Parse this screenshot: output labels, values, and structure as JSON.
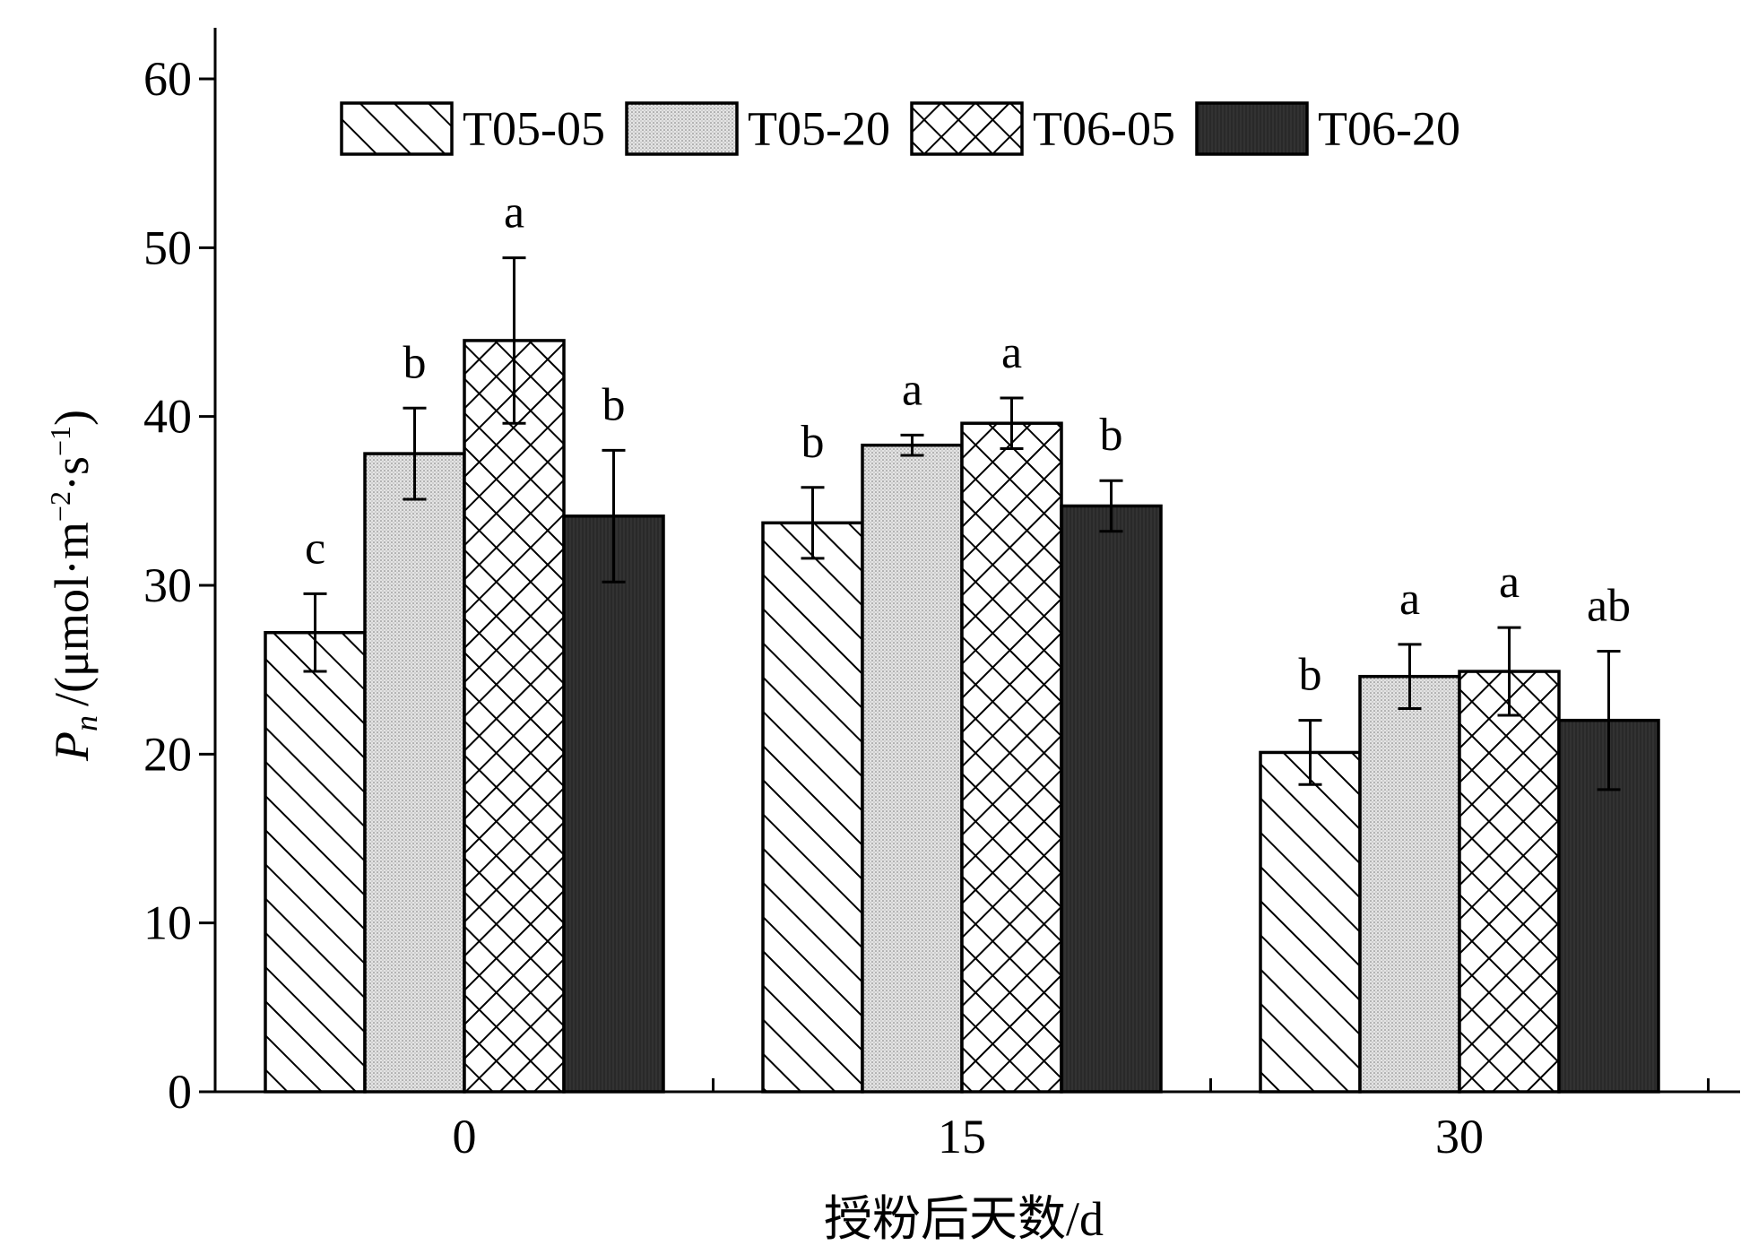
{
  "chart_data": {
    "type": "bar",
    "categories": [
      "0",
      "15",
      "30"
    ],
    "series": [
      {
        "name": "T05-05",
        "values": [
          27.2,
          33.7,
          20.1
        ],
        "errors": [
          2.3,
          2.1,
          1.9
        ],
        "letters": [
          "c",
          "b",
          "b"
        ],
        "fill": "diagonal-hatch"
      },
      {
        "name": "T05-20",
        "values": [
          37.8,
          38.3,
          24.6
        ],
        "errors": [
          2.7,
          0.6,
          1.9
        ],
        "letters": [
          "b",
          "a",
          "a"
        ],
        "fill": "stipple"
      },
      {
        "name": "T06-05",
        "values": [
          44.5,
          39.6,
          24.9
        ],
        "errors": [
          4.9,
          1.5,
          2.6
        ],
        "letters": [
          "a",
          "a",
          "a"
        ],
        "fill": "crosshatch"
      },
      {
        "name": "T06-20",
        "values": [
          34.1,
          34.7,
          22.0
        ],
        "errors": [
          3.9,
          1.5,
          4.1
        ],
        "letters": [
          "b",
          "b",
          "ab"
        ],
        "fill": "dark"
      }
    ],
    "xlabel": "授粉后天数/d",
    "ylabel": {
      "symbol": "P",
      "subscript": "n",
      "unit_start": "/(μmol·m",
      "exp1": "−2",
      "unit_mid": "·s",
      "exp2": "−1",
      "unit_end": ")"
    },
    "ylim": [
      0,
      60
    ],
    "yticks": [
      0,
      10,
      20,
      30,
      40,
      50,
      60
    ],
    "legend": "top",
    "grid": false
  }
}
